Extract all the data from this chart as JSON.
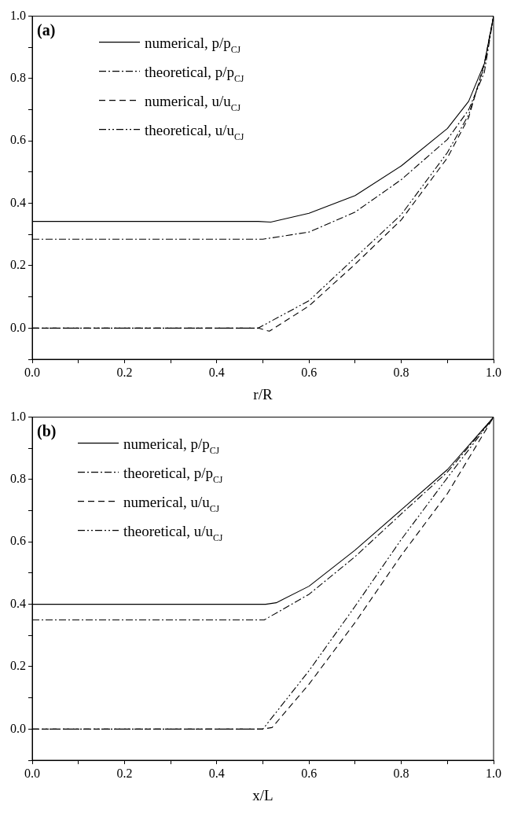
{
  "chart_data": [
    {
      "type": "line",
      "annotations": [
        "(a)"
      ],
      "xlabel": "r/R",
      "legend": "top left",
      "xlim": [
        0,
        1
      ],
      "ylim": [
        -0.1,
        1
      ],
      "xticks": [
        {
          "value": 0,
          "label": "0.0"
        },
        {
          "value": 0.1,
          "label": null
        },
        0.2,
        {
          "value": 0.3,
          "label": null
        },
        0.4,
        {
          "value": 0.5,
          "label": null
        },
        0.6,
        {
          "value": 0.7,
          "label": null
        },
        0.8,
        {
          "value": 0.9,
          "label": null
        },
        {
          "value": 1,
          "label": "1.0"
        }
      ],
      "yticks": [
        {
          "value": -0.1,
          "label": null
        },
        {
          "value": 0,
          "label": "0.0"
        },
        {
          "value": 0.1,
          "label": null
        },
        0.2,
        {
          "value": 0.3,
          "label": null
        },
        0.4,
        {
          "value": 0.5,
          "label": null
        },
        0.6,
        {
          "value": 0.7,
          "label": null
        },
        0.8,
        {
          "value": 0.9,
          "label": null
        },
        {
          "value": 1,
          "label": "1.0"
        }
      ],
      "series": [
        {
          "name": "numerical, p/p$_{CJ}$",
          "color": "#000000",
          "line_style": "solid",
          "x": [
            0,
            0.49,
            0.517,
            0.6,
            0.7,
            0.8,
            0.9,
            0.946,
            0.98,
            1
          ],
          "values": [
            0.342,
            0.342,
            0.34,
            0.368,
            0.425,
            0.52,
            0.64,
            0.727,
            0.848,
            1
          ]
        },
        {
          "name": "theoretical, p/p$_{CJ}$",
          "color": "#000000",
          "line_style": "dashdot",
          "x": [
            0,
            0.5,
            0.6,
            0.7,
            0.8,
            0.9,
            0.946,
            0.98,
            1
          ],
          "values": [
            0.285,
            0.285,
            0.308,
            0.372,
            0.476,
            0.605,
            0.7,
            0.82,
            1
          ]
        },
        {
          "name": "numerical, u/u$_{CJ}$",
          "color": "#000000",
          "line_style": "dashed",
          "x": [
            0,
            0.49,
            0.514,
            0.6,
            0.7,
            0.8,
            0.9,
            0.946,
            0.98,
            1
          ],
          "values": [
            0,
            0,
            -0.01,
            0.071,
            0.205,
            0.347,
            0.546,
            0.675,
            0.848,
            1
          ]
        },
        {
          "name": "theoretical, u/u$_{CJ}$",
          "color": "#000000",
          "line_style": "dashdotdot",
          "x": [
            0,
            0.49,
            0.6,
            0.7,
            0.8,
            0.9,
            0.946,
            0.98,
            1
          ],
          "values": [
            0,
            0,
            0.088,
            0.226,
            0.364,
            0.563,
            0.684,
            0.84,
            1
          ]
        }
      ]
    },
    {
      "type": "line",
      "annotations": [
        "(b)"
      ],
      "xlabel": "x/L",
      "legend": "top left",
      "xlim": [
        0,
        1
      ],
      "ylim": [
        -0.1,
        1
      ],
      "xticks": [
        {
          "value": 0,
          "label": "0.0"
        },
        {
          "value": 0.1,
          "label": null
        },
        0.2,
        {
          "value": 0.3,
          "label": null
        },
        0.4,
        {
          "value": 0.5,
          "label": null
        },
        0.6,
        {
          "value": 0.7,
          "label": null
        },
        0.8,
        {
          "value": 0.9,
          "label": null
        },
        {
          "value": 1,
          "label": "1.0"
        }
      ],
      "yticks": [
        {
          "value": -0.1,
          "label": null
        },
        {
          "value": 0,
          "label": "0.0"
        },
        {
          "value": 0.1,
          "label": null
        },
        0.2,
        {
          "value": 0.3,
          "label": null
        },
        0.4,
        {
          "value": 0.5,
          "label": null
        },
        0.6,
        {
          "value": 0.7,
          "label": null
        },
        0.8,
        {
          "value": 0.9,
          "label": null
        },
        {
          "value": 1,
          "label": "1.0"
        }
      ],
      "series": [
        {
          "name": "numerical, p/p$_{CJ}$",
          "color": "#000000",
          "line_style": "solid",
          "x": [
            0,
            0.506,
            0.529,
            0.6,
            0.7,
            0.8,
            0.9,
            1
          ],
          "values": [
            0.4,
            0.4,
            0.405,
            0.458,
            0.574,
            0.703,
            0.832,
            1
          ]
        },
        {
          "name": "theoretical, p/p$_{CJ}$",
          "color": "#000000",
          "line_style": "dashdot",
          "x": [
            0,
            0.503,
            0.6,
            0.7,
            0.8,
            0.9,
            1
          ],
          "values": [
            0.35,
            0.35,
            0.432,
            0.553,
            0.69,
            0.824,
            1
          ]
        },
        {
          "name": "numerical, u/u$_{CJ}$",
          "color": "#000000",
          "line_style": "dashed",
          "x": [
            0,
            0.5,
            0.52,
            0.6,
            0.7,
            0.8,
            0.9,
            1
          ],
          "values": [
            0,
            0,
            0.005,
            0.144,
            0.342,
            0.557,
            0.755,
            1
          ]
        },
        {
          "name": "theoretical, u/u$_{CJ}$",
          "color": "#000000",
          "line_style": "dashdotdot",
          "x": [
            0,
            0.5,
            0.6,
            0.7,
            0.8,
            0.9,
            1
          ],
          "values": [
            0,
            0,
            0.187,
            0.394,
            0.608,
            0.806,
            1
          ]
        }
      ]
    }
  ]
}
